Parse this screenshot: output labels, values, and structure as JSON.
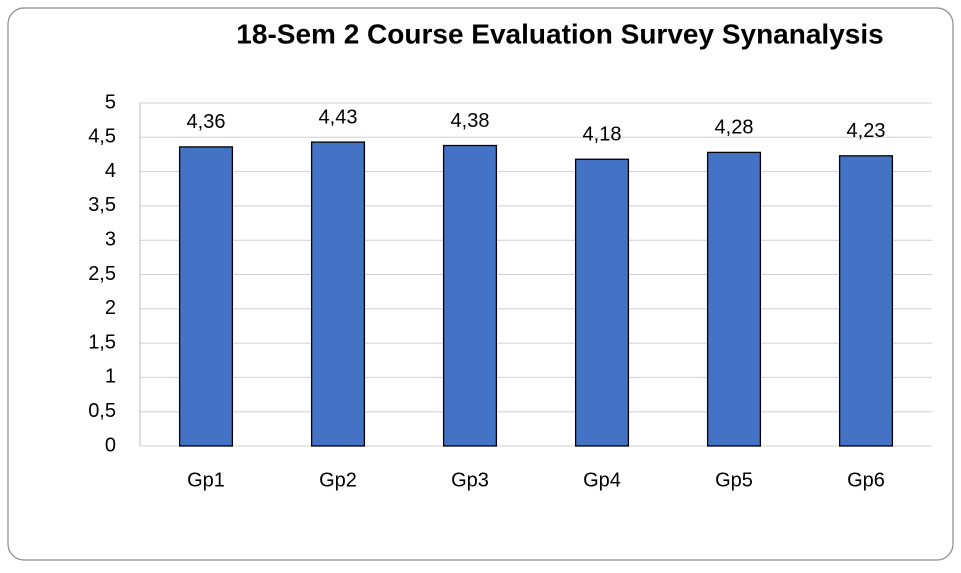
{
  "chart_data": {
    "type": "bar",
    "title": "18-Sem 2 Course Evaluation Survey Synanalysis",
    "categories": [
      "Gp1",
      "Gp2",
      "Gp3",
      "Gp4",
      "Gp5",
      "Gp6"
    ],
    "values": [
      4.36,
      4.43,
      4.38,
      4.18,
      4.28,
      4.23
    ],
    "value_labels": [
      "4,36",
      "4,43",
      "4,38",
      "4,18",
      "4,28",
      "4,23"
    ],
    "color": "#4472c4",
    "ylim": [
      0,
      5
    ],
    "yticks": [
      0,
      {
        "value": 0.5,
        "label": "0,5"
      },
      1,
      {
        "value": 1.5,
        "label": "1,5"
      },
      2,
      {
        "value": 2.5,
        "label": "2,5"
      },
      3,
      {
        "value": 3.5,
        "label": "3,5"
      },
      4,
      {
        "value": 4.5,
        "label": "4,5"
      },
      5
    ],
    "grid": true
  }
}
